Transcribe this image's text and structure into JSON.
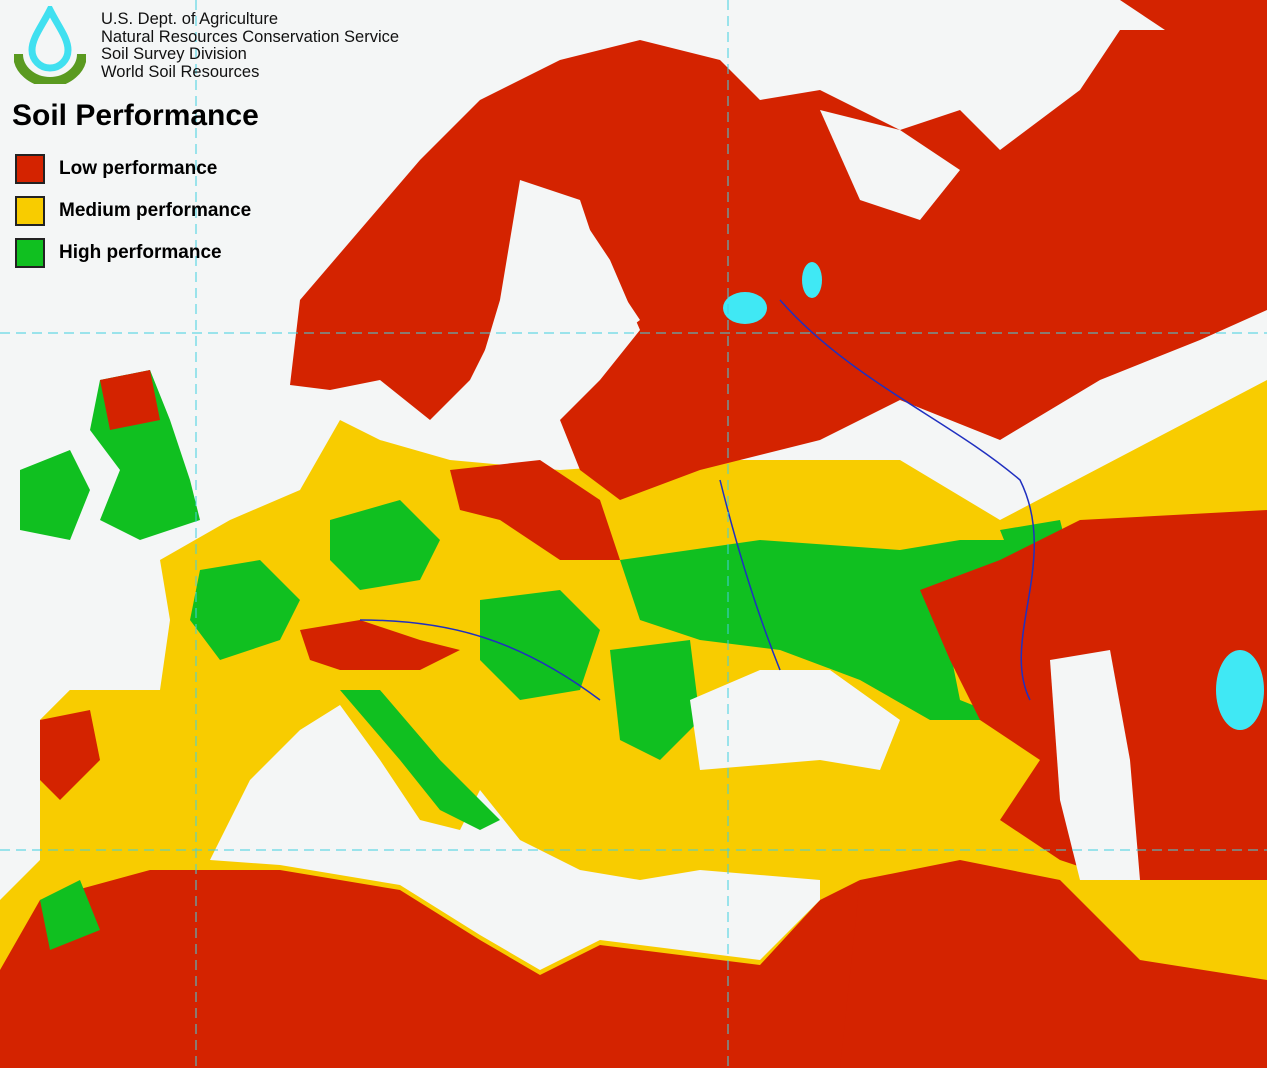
{
  "header": {
    "agency_lines": [
      "U.S. Dept. of Agriculture",
      "Natural Resources Conservation Service",
      "Soil Survey Division",
      "World Soil Resources"
    ]
  },
  "legend": {
    "title": "Soil Performance",
    "items": [
      {
        "label": "Low performance",
        "color": "#d42300"
      },
      {
        "label": "Medium performance",
        "color": "#f8cc00"
      },
      {
        "label": "High performance",
        "color": "#10c020"
      }
    ]
  },
  "colors": {
    "sea": "#f4f6f6",
    "water_bodies": "#40e8f4",
    "graticule": "#40d0e0",
    "rivers": "#2030c0"
  }
}
